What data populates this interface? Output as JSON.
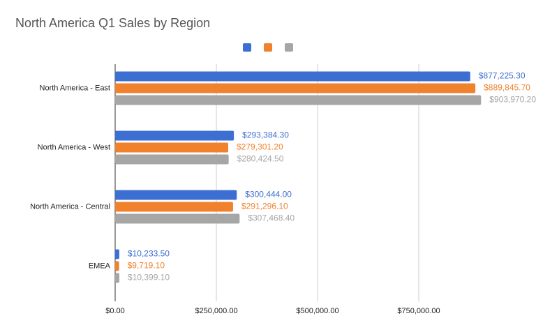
{
  "chart_data": {
    "type": "bar",
    "orientation": "horizontal",
    "title": "North America Q1 Sales by Region",
    "categories": [
      "North America - East",
      "North America - West",
      "North America - Central",
      "EMEA"
    ],
    "series": [
      {
        "color": "#3d6fd2",
        "values": [
          877225.3,
          293384.3,
          300444.0,
          10233.5
        ],
        "value_labels": [
          "$877,225.30",
          "$293,384.30",
          "$300,444.00",
          "$10,233.50"
        ]
      },
      {
        "color": "#f0822e",
        "values": [
          889845.7,
          279301.2,
          291296.1,
          9719.1
        ],
        "value_labels": [
          "$889,845.70",
          "$279,301.20",
          "$291,296.10",
          "$9,719.10"
        ]
      },
      {
        "color": "#a6a6a6",
        "values": [
          903970.2,
          280424.5,
          307468.4,
          10399.1
        ],
        "value_labels": [
          "$903,970.20",
          "$280,424.50",
          "$307,468.40",
          "$10,399.10"
        ]
      }
    ],
    "xlim": [
      0,
      1039655
    ],
    "xticks": [
      {
        "value": 0,
        "label": "$0.00"
      },
      {
        "value": 250000,
        "label": "$250,000.00"
      },
      {
        "value": 500000,
        "label": "$500,000.00"
      },
      {
        "value": 750000,
        "label": "$750,000.00"
      }
    ],
    "grid": true
  }
}
